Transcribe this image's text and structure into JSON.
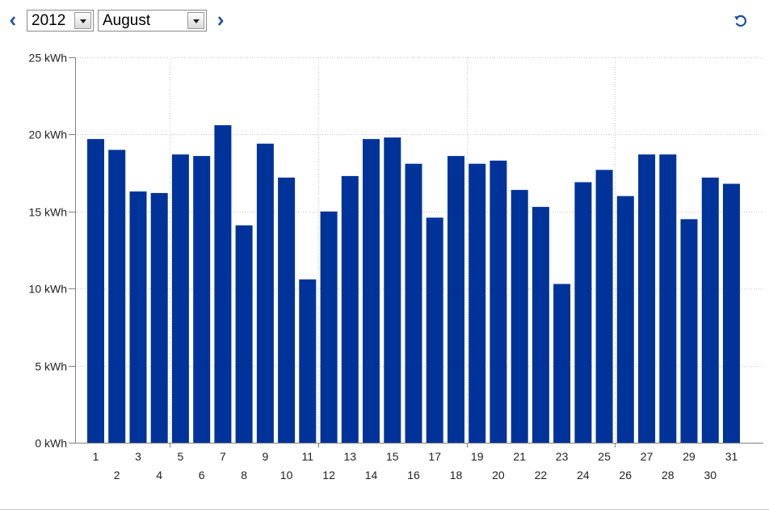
{
  "toolbar": {
    "prev_icon": "chevron-left-icon",
    "next_icon": "chevron-right-icon",
    "refresh_icon": "refresh-icon",
    "year_value": "2012",
    "month_value": "August"
  },
  "colors": {
    "bar": "#003399",
    "axis": "#808080",
    "grid": "#c8c8c8",
    "nav": "#1f4f9a"
  },
  "chart_data": {
    "type": "bar",
    "title": "",
    "xlabel": "",
    "ylabel": "",
    "ylim": [
      0,
      25
    ],
    "y_ticks": [
      {
        "value": 0,
        "label": "0 kWh"
      },
      {
        "value": 5,
        "label": "5 kWh"
      },
      {
        "value": 10,
        "label": "10 kWh"
      },
      {
        "value": 15,
        "label": "15 kWh"
      },
      {
        "value": 20,
        "label": "20 kWh"
      },
      {
        "value": 25,
        "label": "25 kWh"
      }
    ],
    "grid": true,
    "legend": "none",
    "categories": [
      "1",
      "2",
      "3",
      "4",
      "5",
      "6",
      "7",
      "8",
      "9",
      "10",
      "11",
      "12",
      "13",
      "14",
      "15",
      "16",
      "17",
      "18",
      "19",
      "20",
      "21",
      "22",
      "23",
      "24",
      "25",
      "26",
      "27",
      "28",
      "29",
      "30",
      "31"
    ],
    "values": [
      19.7,
      19.0,
      16.3,
      16.2,
      18.7,
      18.6,
      20.6,
      14.1,
      19.4,
      17.2,
      10.6,
      15.0,
      17.3,
      19.7,
      19.8,
      18.1,
      14.6,
      18.6,
      18.1,
      18.3,
      16.4,
      15.3,
      10.3,
      16.9,
      17.7,
      16.0,
      18.7,
      18.7,
      14.5,
      17.2,
      16.8
    ]
  }
}
